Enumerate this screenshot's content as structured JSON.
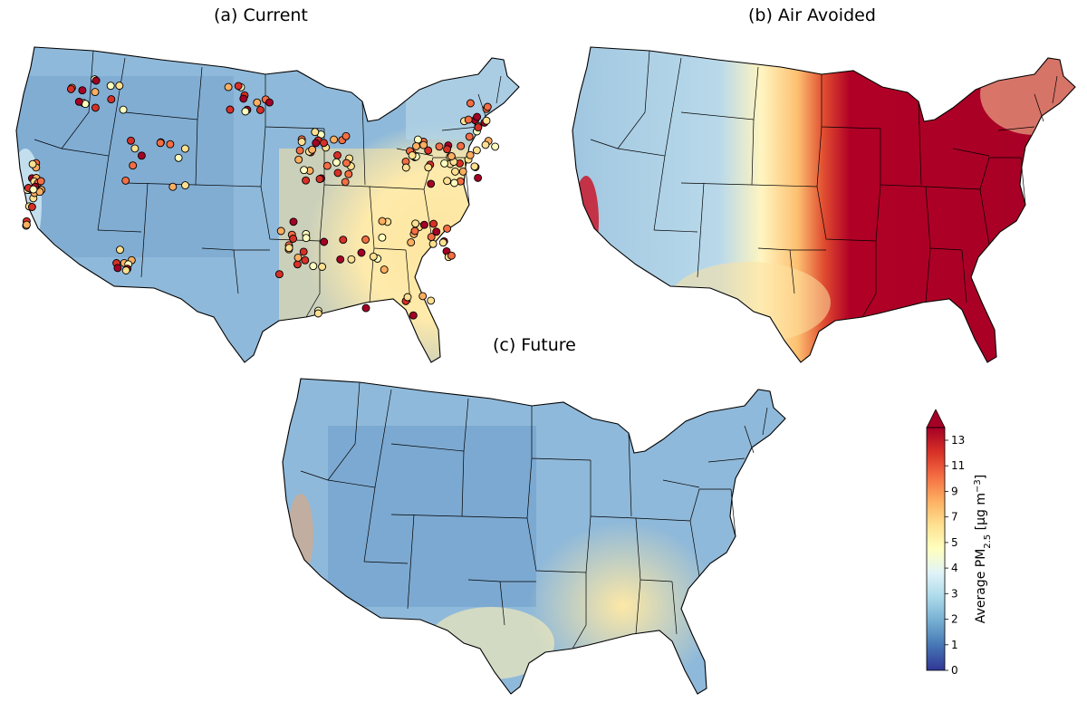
{
  "panels": [
    {
      "id": "a",
      "title": "(a) Current"
    },
    {
      "id": "b",
      "title": "(b) Air Avoided"
    },
    {
      "id": "c",
      "title": "(c) Future"
    }
  ],
  "colorbar": {
    "label": "Average PM2.5 [µg m⁻³]",
    "label_main": "Average PM",
    "label_sub": "2.5",
    "label_unit": " [µg m",
    "label_exp": "−3",
    "label_close": "]",
    "ticks": [
      "0",
      "1",
      "2",
      "3",
      "4",
      "5",
      "7",
      "9",
      "11",
      "13"
    ],
    "extend": "max",
    "colormap": "RdYlBu_r",
    "colors": [
      "#313695",
      "#4575b4",
      "#74add1",
      "#abd9e9",
      "#e0f3f8",
      "#ffffbf",
      "#fee090",
      "#fdae61",
      "#f46d43",
      "#d73027",
      "#a50026"
    ]
  },
  "map_style": {
    "background_a": "#8fb9da",
    "background_b": "#e6f2f0",
    "background_c": "#8fb9da",
    "marker_edge": "#000000",
    "marker_colors": [
      "#fee090",
      "#fdae61",
      "#f46d43",
      "#d73027",
      "#a50026",
      "#ffffbf"
    ]
  }
}
